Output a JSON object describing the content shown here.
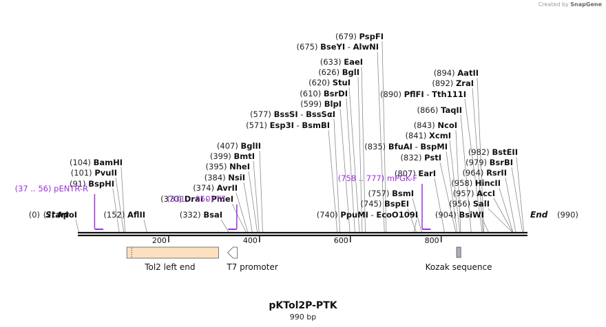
{
  "credit": {
    "prefix": "Created by",
    "brand": "SnapGene"
  },
  "map": {
    "name": "pKTol2P-PTK",
    "length_label": "990 bp",
    "length": 990,
    "start_label": "Start",
    "start_pos": "(0)",
    "end_label": "End",
    "end_pos": "(990)",
    "ruler_ticks": [
      {
        "value": 200,
        "label": "200"
      },
      {
        "value": 400,
        "label": "400"
      },
      {
        "value": 600,
        "label": "600"
      },
      {
        "value": 800,
        "label": "800"
      }
    ]
  },
  "sites": [
    {
      "pos": 2,
      "pos_label": "(2)",
      "enzymes": [
        "ApoI"
      ],
      "site": 2
    },
    {
      "pos": 152,
      "pos_label": "(152)",
      "enzymes": [
        "AflII"
      ],
      "site": 152
    },
    {
      "pos": 91,
      "pos_label": "(91)",
      "enzymes": [
        "BspHI"
      ],
      "site": 91
    },
    {
      "pos": 101,
      "pos_label": "(101)",
      "enzymes": [
        "PvuII"
      ],
      "site": 101
    },
    {
      "pos": 104,
      "pos_label": "(104)",
      "enzymes": [
        "BamHI"
      ],
      "site": 104
    },
    {
      "pos": 332,
      "pos_label": "(332)",
      "enzymes": [
        "BsaI"
      ],
      "site": 332
    },
    {
      "pos": 370,
      "pos_label": "(370)",
      "enzymes": [
        "DraI",
        "PmeI"
      ],
      "site": 370
    },
    {
      "pos": 374,
      "pos_label": "(374)",
      "enzymes": [
        "AvrII"
      ],
      "site": 374
    },
    {
      "pos": 384,
      "pos_label": "(384)",
      "enzymes": [
        "NsiI"
      ],
      "site": 384
    },
    {
      "pos": 395,
      "pos_label": "(395)",
      "enzymes": [
        "NheI"
      ],
      "site": 395
    },
    {
      "pos": 399,
      "pos_label": "(399)",
      "enzymes": [
        "BmtI"
      ],
      "site": 399
    },
    {
      "pos": 407,
      "pos_label": "(407)",
      "enzymes": [
        "BglII"
      ],
      "site": 407
    },
    {
      "pos": 571,
      "pos_label": "(571)",
      "enzymes": [
        "Esp3I",
        "BsmBI"
      ],
      "site": 571
    },
    {
      "pos": 577,
      "pos_label": "(577)",
      "enzymes": [
        "BssSI",
        "BssSαI"
      ],
      "site": 577
    },
    {
      "pos": 599,
      "pos_label": "(599)",
      "enzymes": [
        "BlpI"
      ],
      "site": 599
    },
    {
      "pos": 610,
      "pos_label": "(610)",
      "enzymes": [
        "BsrDI"
      ],
      "site": 610
    },
    {
      "pos": 620,
      "pos_label": "(620)",
      "enzymes": [
        "StuI"
      ],
      "site": 620
    },
    {
      "pos": 626,
      "pos_label": "(626)",
      "enzymes": [
        "BglI"
      ],
      "site": 626
    },
    {
      "pos": 633,
      "pos_label": "(633)",
      "enzymes": [
        "EaeI"
      ],
      "site": 633
    },
    {
      "pos": 675,
      "pos_label": "(675)",
      "enzymes": [
        "BseYI",
        "AlwNI"
      ],
      "site": 675
    },
    {
      "pos": 679,
      "pos_label": "(679)",
      "enzymes": [
        "PspFI"
      ],
      "site": 679
    },
    {
      "pos": 740,
      "pos_label": "(740)",
      "enzymes": [
        "PpuMI",
        "EcoO109I"
      ],
      "site": 740
    },
    {
      "pos": 745,
      "pos_label": "(745)",
      "enzymes": [
        "BspEI"
      ],
      "site": 745
    },
    {
      "pos": 757,
      "pos_label": "(757)",
      "enzymes": [
        "BsmI"
      ],
      "site": 757
    },
    {
      "pos": 807,
      "pos_label": "(807)",
      "enzymes": [
        "EarI"
      ],
      "site": 807
    },
    {
      "pos": 832,
      "pos_label": "(832)",
      "enzymes": [
        "PstI"
      ],
      "site": 832
    },
    {
      "pos": 835,
      "pos_label": "(835)",
      "enzymes": [
        "BfuAI",
        "BspMI"
      ],
      "site": 835
    },
    {
      "pos": 841,
      "pos_label": "(841)",
      "enzymes": [
        "XcmI"
      ],
      "site": 841
    },
    {
      "pos": 843,
      "pos_label": "(843)",
      "enzymes": [
        "NcoI"
      ],
      "site": 843
    },
    {
      "pos": 866,
      "pos_label": "(866)",
      "enzymes": [
        "TaqII"
      ],
      "site": 866
    },
    {
      "pos": 890,
      "pos_label": "(890)",
      "enzymes": [
        "PflFI",
        "Tth111I"
      ],
      "site": 890
    },
    {
      "pos": 892,
      "pos_label": "(892)",
      "enzymes": [
        "ZraI"
      ],
      "site": 892
    },
    {
      "pos": 894,
      "pos_label": "(894)",
      "enzymes": [
        "AatII"
      ],
      "site": 894
    },
    {
      "pos": 904,
      "pos_label": "(904)",
      "enzymes": [
        "BsiWI"
      ],
      "site": 904
    },
    {
      "pos": 956,
      "pos_label": "(956)",
      "enzymes": [
        "SalI"
      ],
      "site": 956
    },
    {
      "pos": 957,
      "pos_label": "(957)",
      "enzymes": [
        "AccI"
      ],
      "site": 957
    },
    {
      "pos": 958,
      "pos_label": "(958)",
      "enzymes": [
        "HincII"
      ],
      "site": 958
    },
    {
      "pos": 964,
      "pos_label": "(964)",
      "enzymes": [
        "RsrII"
      ],
      "site": 964
    },
    {
      "pos": 979,
      "pos_label": "(979)",
      "enzymes": [
        "BsrBI"
      ],
      "site": 979
    },
    {
      "pos": 982,
      "pos_label": "(982)",
      "enzymes": [
        "BstEII"
      ],
      "site": 982
    }
  ],
  "primers": [
    {
      "range": "(37 .. 56)",
      "name": "pENTR-R",
      "start": 37,
      "end": 56,
      "color": "#9b30e0"
    },
    {
      "range": "(331 .. 350)",
      "name": "T7",
      "start": 331,
      "end": 350,
      "color": "#9b30e0"
    },
    {
      "range": "(758 .. 777)",
      "name": "mPGK-F",
      "start": 758,
      "end": 777,
      "color": "#9b30e0"
    }
  ],
  "features": [
    {
      "name": "Tol2 left end",
      "start": 108,
      "end": 310,
      "type": "box",
      "fill": "#fde0c0"
    },
    {
      "name": "T7 promoter",
      "start": 331,
      "end": 350,
      "type": "arrow",
      "fill": "#ffffff"
    },
    {
      "name": "Kozak sequence",
      "start": 834,
      "end": 843,
      "type": "small",
      "fill": "#a9b0bd"
    }
  ]
}
